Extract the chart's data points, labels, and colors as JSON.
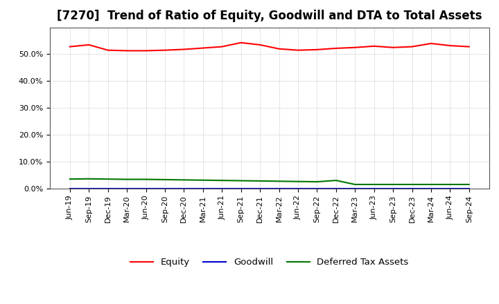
{
  "title": "[7270]  Trend of Ratio of Equity, Goodwill and DTA to Total Assets",
  "labels": [
    "Jun-19",
    "Sep-19",
    "Dec-19",
    "Mar-20",
    "Jun-20",
    "Sep-20",
    "Dec-20",
    "Mar-21",
    "Jun-21",
    "Sep-21",
    "Dec-21",
    "Mar-22",
    "Jun-22",
    "Sep-22",
    "Dec-22",
    "Mar-23",
    "Jun-23",
    "Sep-23",
    "Dec-23",
    "Mar-24",
    "Jun-24",
    "Sep-24"
  ],
  "equity": [
    52.8,
    53.5,
    51.5,
    51.3,
    51.3,
    51.5,
    51.8,
    52.3,
    52.8,
    54.3,
    53.5,
    52.0,
    51.5,
    51.7,
    52.2,
    52.5,
    53.0,
    52.5,
    52.8,
    54.0,
    53.2,
    52.8
  ],
  "goodwill": [
    0.0,
    0.0,
    0.0,
    0.0,
    0.0,
    0.0,
    0.0,
    0.0,
    0.0,
    0.0,
    0.0,
    0.0,
    0.0,
    0.0,
    0.0,
    0.0,
    0.0,
    0.0,
    0.0,
    0.0,
    0.0,
    0.0
  ],
  "dta": [
    3.5,
    3.6,
    3.5,
    3.4,
    3.4,
    3.3,
    3.2,
    3.1,
    3.0,
    2.9,
    2.8,
    2.7,
    2.6,
    2.5,
    3.0,
    1.5,
    1.5,
    1.5,
    1.5,
    1.5,
    1.5,
    1.5
  ],
  "equity_color": "#FF0000",
  "goodwill_color": "#0000CC",
  "dta_color": "#007700",
  "bg_color": "#FFFFFF",
  "plot_bg_color": "#FFFFFF",
  "grid_color": "#999999",
  "ylim": [
    0,
    60
  ],
  "yticks": [
    0,
    10,
    20,
    30,
    40,
    50
  ],
  "ytick_labels": [
    "0.0%",
    "10.0%",
    "20.0%",
    "30.0%",
    "40.0%",
    "50.0%"
  ],
  "legend_labels": [
    "Equity",
    "Goodwill",
    "Deferred Tax Assets"
  ],
  "title_fontsize": 12,
  "tick_fontsize": 8,
  "legend_fontsize": 9.5
}
